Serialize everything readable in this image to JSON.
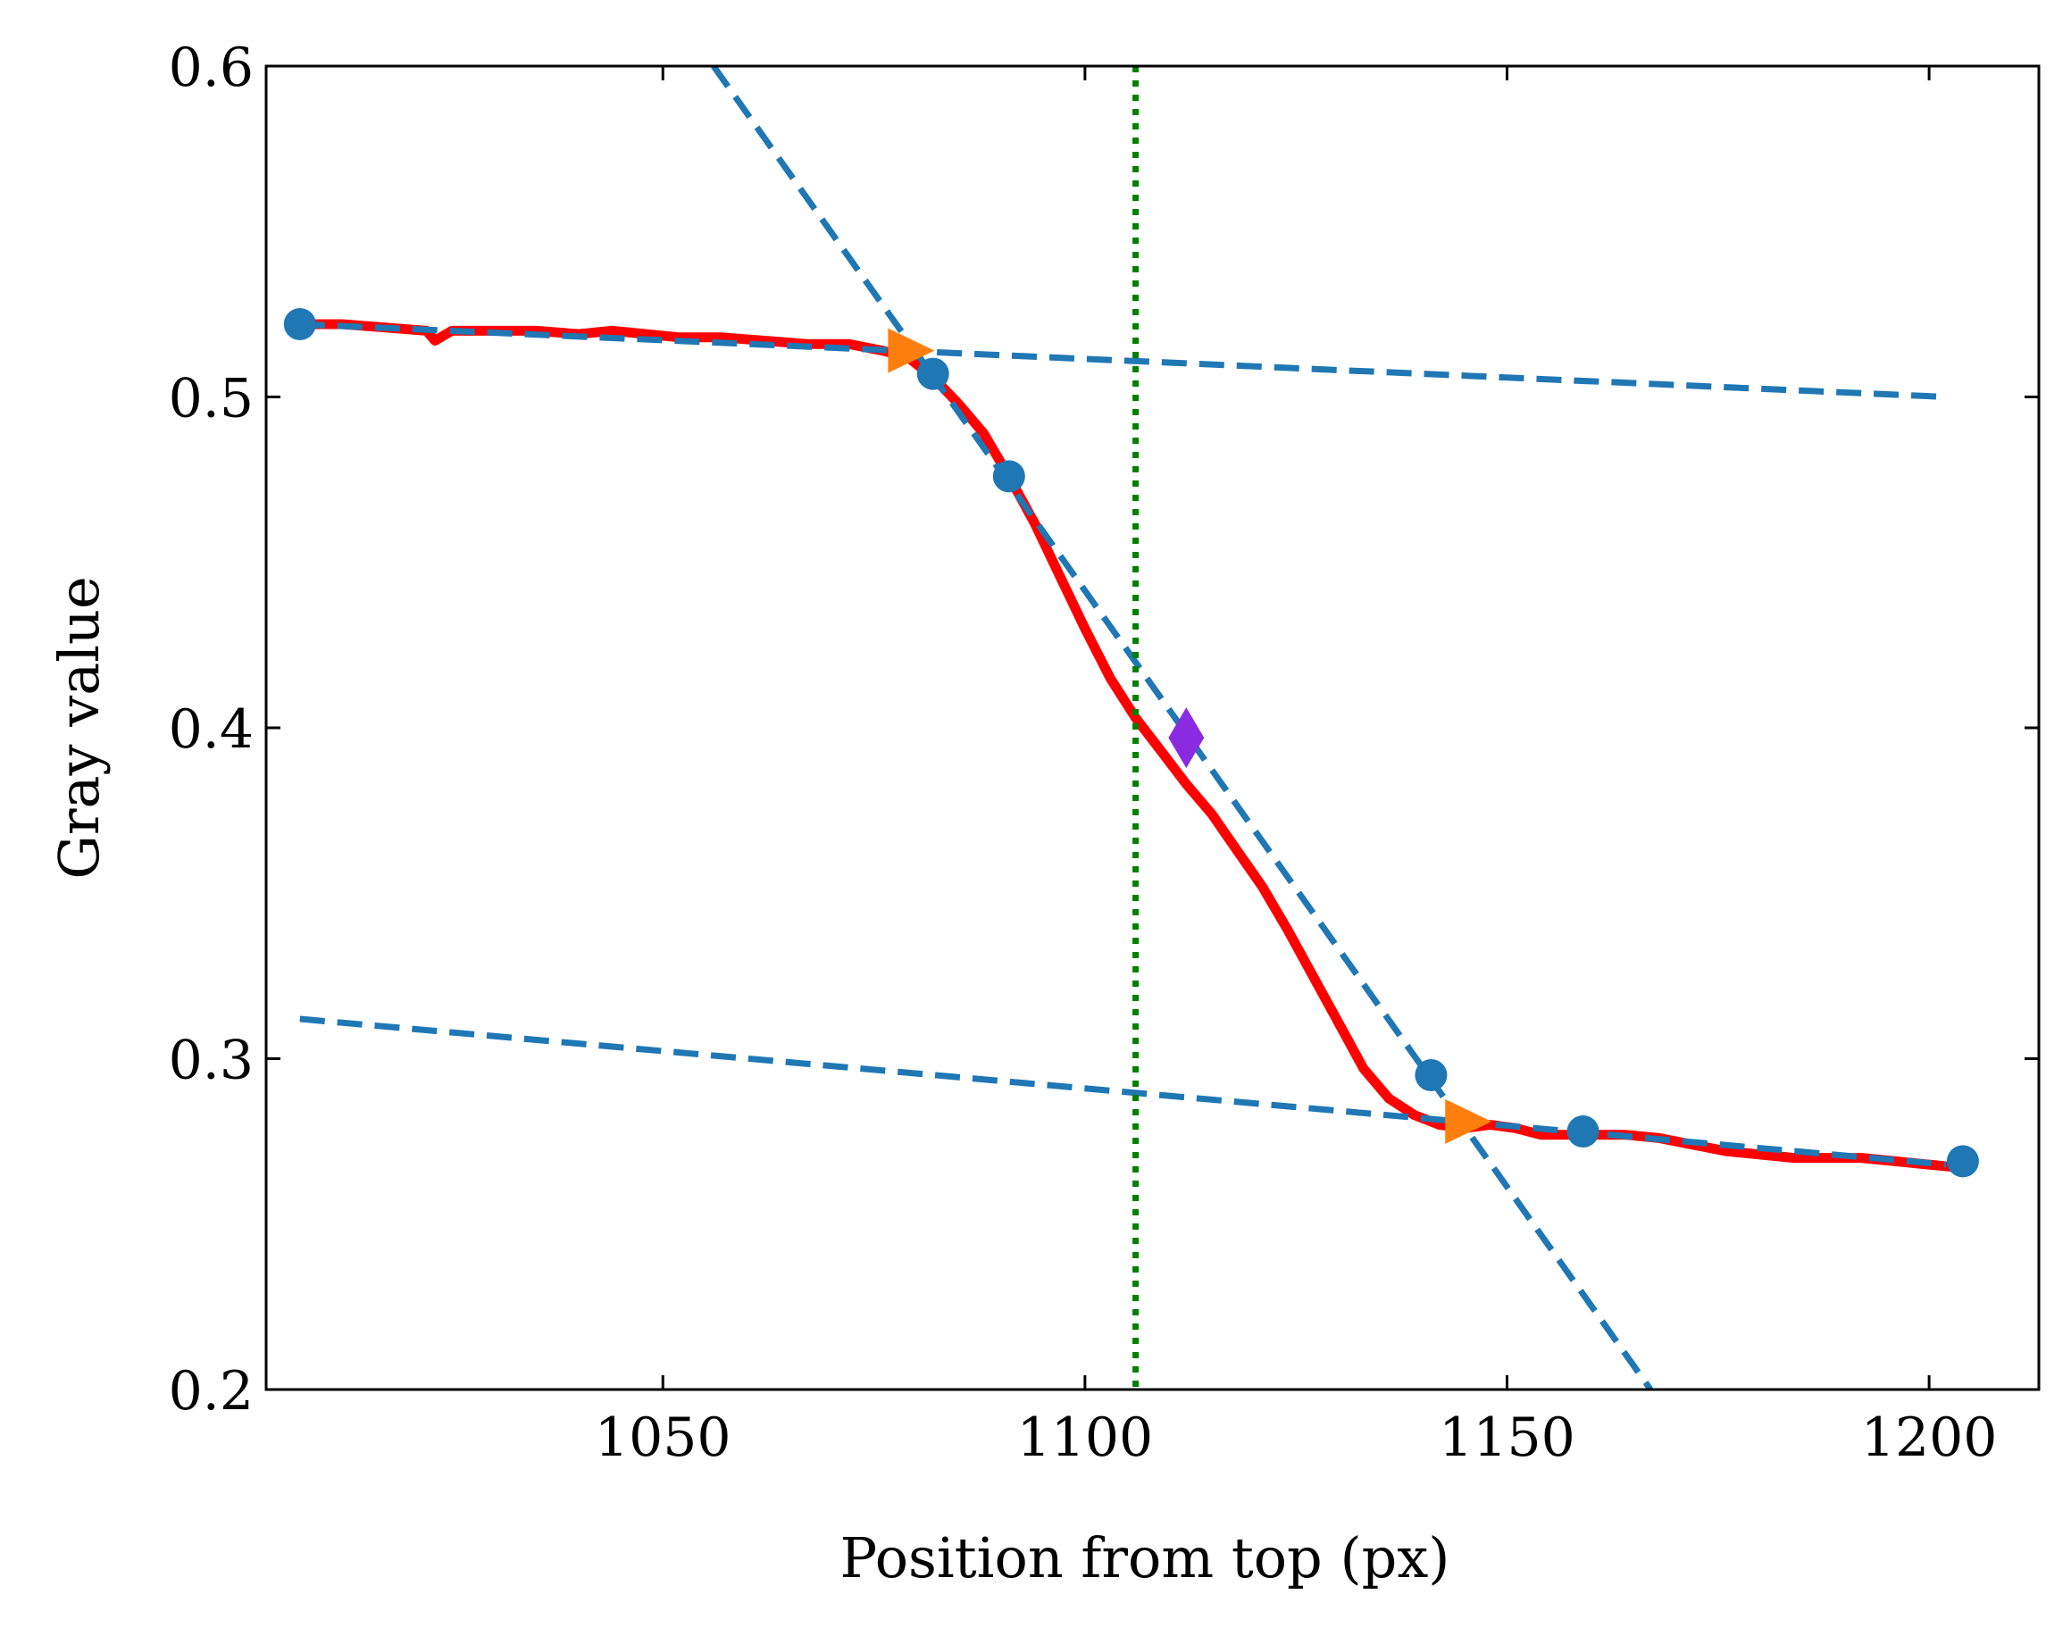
{
  "chart_data": {
    "type": "line",
    "title": "",
    "xlabel": "Position from top (px)",
    "ylabel": "Gray value",
    "xlim": [
      1003,
      1213
    ],
    "ylim": [
      0.2,
      0.6
    ],
    "xticks": [
      1050,
      1100,
      1150,
      1200
    ],
    "yticks": [
      0.2,
      0.3,
      0.4,
      0.5,
      0.6
    ],
    "xtick_labels": [
      "1050",
      "1100",
      "1150",
      "1200"
    ],
    "ytick_labels": [
      "0.2",
      "0.3",
      "0.4",
      "0.5",
      "0.6"
    ],
    "grid": false,
    "legend": null,
    "colors": {
      "profile": "#ff0000",
      "fit": "#1f77b4",
      "intersection": "#ff7f0e",
      "midpoint": "#8a2be2",
      "vertical": "#008000"
    },
    "profile": {
      "x": [
        1007,
        1012,
        1017,
        1022,
        1023,
        1025,
        1030,
        1035,
        1040,
        1044,
        1048,
        1052,
        1057,
        1062,
        1067,
        1072,
        1076,
        1079,
        1082,
        1085,
        1088,
        1091,
        1094,
        1097,
        1100,
        1103,
        1106,
        1109,
        1112,
        1115,
        1118,
        1121,
        1124,
        1127,
        1130,
        1133,
        1136,
        1139,
        1142,
        1145,
        1148,
        1151,
        1154,
        1157,
        1160,
        1164,
        1168,
        1172,
        1176,
        1180,
        1184,
        1188,
        1192,
        1196,
        1200,
        1204
      ],
      "y": [
        0.522,
        0.522,
        0.521,
        0.52,
        0.517,
        0.52,
        0.52,
        0.52,
        0.519,
        0.52,
        0.519,
        0.518,
        0.518,
        0.517,
        0.516,
        0.516,
        0.514,
        0.512,
        0.506,
        0.498,
        0.489,
        0.476,
        0.462,
        0.446,
        0.43,
        0.415,
        0.403,
        0.393,
        0.383,
        0.374,
        0.363,
        0.352,
        0.339,
        0.325,
        0.311,
        0.297,
        0.288,
        0.283,
        0.28,
        0.279,
        0.28,
        0.279,
        0.277,
        0.277,
        0.277,
        0.277,
        0.276,
        0.274,
        0.272,
        0.271,
        0.27,
        0.27,
        0.27,
        0.269,
        0.268,
        0.267
      ]
    },
    "fit_lines": [
      {
        "x": [
          1007,
          1202
        ],
        "y": [
          0.522,
          0.5
        ]
      },
      {
        "x": [
          1007,
          1202
        ],
        "y": [
          0.312,
          0.268
        ]
      },
      {
        "x": [
          1056,
          1167
        ],
        "y": [
          0.6,
          0.2
        ]
      }
    ],
    "fit_points": {
      "x": [
        1007,
        1082,
        1091,
        1141,
        1159,
        1204
      ],
      "y": [
        0.522,
        0.507,
        0.476,
        0.295,
        0.278,
        0.269
      ]
    },
    "intersection_points": {
      "x": [
        1079,
        1145
      ],
      "y": [
        0.514,
        0.281
      ]
    },
    "midpoint": {
      "x": 1112,
      "y": 0.397
    },
    "vertical_line": {
      "x": 1106
    }
  }
}
